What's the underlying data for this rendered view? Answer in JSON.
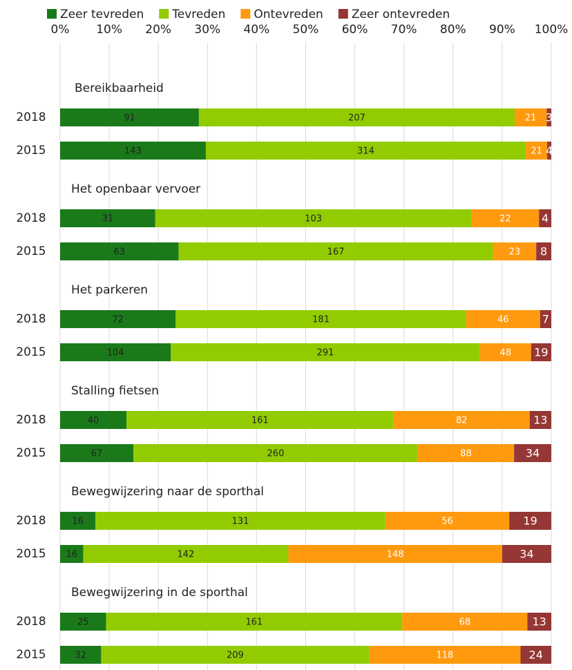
{
  "chart_data": {
    "type": "bar",
    "orientation": "horizontal",
    "stack": "percent",
    "groups": [
      "Bereikbaarheid",
      "Het openbaar vervoer",
      "Het parkeren",
      "Stalling fietsen",
      "Bewegwijzering naar de sporthal",
      "Bewegwijzering in de sporthal"
    ],
    "categories": [
      "2018",
      "2015",
      "2018",
      "2015",
      "2018",
      "2015",
      "2018",
      "2015",
      "2018",
      "2015",
      "2018",
      "2015"
    ],
    "series": [
      {
        "name": "Zeer tevreden",
        "color": "#1a7a1a",
        "values": [
          91,
          143,
          31,
          63,
          72,
          104,
          40,
          67,
          16,
          16,
          25,
          32
        ]
      },
      {
        "name": "Tevreden",
        "color": "#92cc00",
        "values": [
          207,
          314,
          103,
          167,
          181,
          291,
          161,
          260,
          131,
          142,
          161,
          209
        ]
      },
      {
        "name": "Ontevreden",
        "color": "#ff9a0e",
        "values": [
          21,
          21,
          22,
          23,
          46,
          48,
          82,
          88,
          56,
          148,
          68,
          118
        ]
      },
      {
        "name": "Zeer ontevreden",
        "color": "#953735",
        "values": [
          3,
          4,
          4,
          8,
          7,
          19,
          13,
          34,
          19,
          34,
          13,
          24
        ]
      }
    ],
    "xlim": [
      0,
      100
    ],
    "xticks": [
      {
        "value": 0,
        "label": "0%"
      },
      {
        "value": 10,
        "label": "10%"
      },
      {
        "value": 20,
        "label": "20%"
      },
      {
        "value": 30,
        "label": "30%"
      },
      {
        "value": 40,
        "label": "40%"
      },
      {
        "value": 50,
        "label": "50%"
      },
      {
        "value": 60,
        "label": "60%"
      },
      {
        "value": 70,
        "label": "70%"
      },
      {
        "value": 80,
        "label": "80%"
      },
      {
        "value": 90,
        "label": "90%"
      },
      {
        "value": 100,
        "label": "100%"
      }
    ],
    "grid": true,
    "legend": "top"
  }
}
